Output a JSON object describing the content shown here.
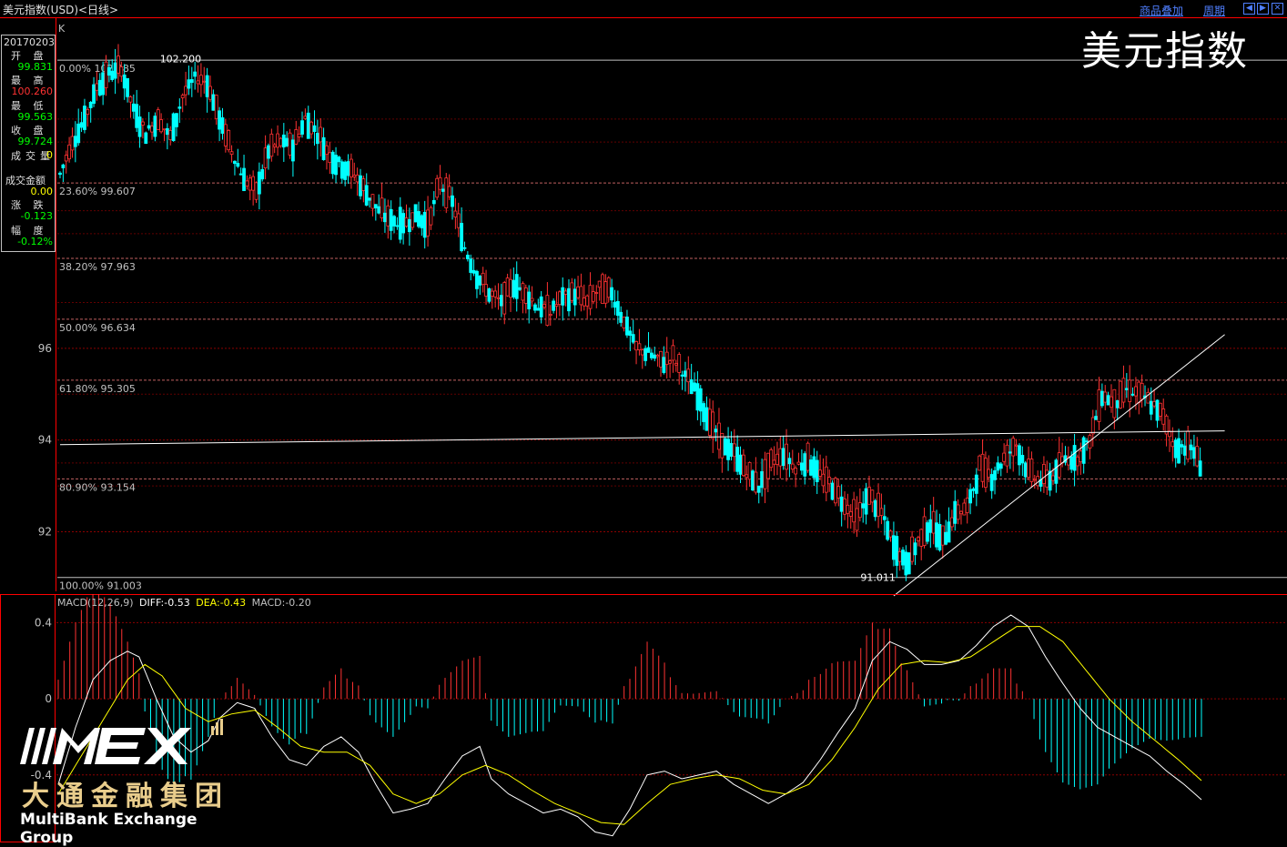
{
  "header": {
    "instrument_title": "美元指数(USD)<日线>",
    "overlay_link": "商品叠加",
    "period_link": "周期"
  },
  "info_panel": {
    "date": "20170203",
    "rows": [
      {
        "label": "开 盘",
        "value": "99.831",
        "color": "#00ff00"
      },
      {
        "label": "最 高",
        "value": "100.260",
        "color": "#ff3232"
      },
      {
        "label": "最 低",
        "value": "99.563",
        "color": "#00ff00"
      },
      {
        "label": "收 盘",
        "value": "99.724",
        "color": "#00ff00"
      },
      {
        "label": "成交量",
        "value": "0",
        "color": "#ffff00"
      },
      {
        "label": "成交金额",
        "value": "0.00",
        "color": "#ffff00"
      },
      {
        "label": "涨 跌",
        "value": "-0.123",
        "color": "#00ff00"
      },
      {
        "label": "幅 度",
        "value": "-0.12%",
        "color": "#00ff00"
      }
    ]
  },
  "chart_label": "K",
  "watermark": "美元指数",
  "macd_header": {
    "name": "MACD(12,26,9)",
    "diff": "DIFF:-0.53",
    "dea": "DEA:-0.43",
    "macd": "MACD:-0.20"
  },
  "logo": {
    "mark": "MEX",
    "name_cn": "大通金融集团",
    "name_en": "MultiBank Exchange Group"
  },
  "colors": {
    "up": "#ff3232",
    "down": "#00ffff",
    "grid": "#8b0000",
    "dif": "#ffffff",
    "dea": "#ffff00"
  },
  "chart_data": [
    {
      "type": "candlestick",
      "ylim": [
        90.7,
        103.2
      ],
      "yticks": [
        92,
        94,
        96
      ],
      "high_annotation": "102.200",
      "low_annotation": "91.011",
      "fib_levels": [
        {
          "label": "0.00% 102.285",
          "value": 102.285
        },
        {
          "label": "23.60% 99.607",
          "value": 99.607
        },
        {
          "label": "38.20% 97.963",
          "value": 97.963
        },
        {
          "label": "50.00% 96.634",
          "value": 96.634
        },
        {
          "label": "61.80% 95.305",
          "value": 95.305
        },
        {
          "label": "80.90% 93.154",
          "value": 93.154
        },
        {
          "label": "100.00% 91.003",
          "value": 91.003
        }
      ],
      "close_path": [
        [
          0,
          99.8
        ],
        [
          4,
          100.5
        ],
        [
          8,
          101.0
        ],
        [
          12,
          101.7
        ],
        [
          16,
          102.0
        ],
        [
          20,
          102.1
        ],
        [
          24,
          101.2
        ],
        [
          28,
          100.7
        ],
        [
          32,
          101.0
        ],
        [
          36,
          100.6
        ],
        [
          40,
          101.5
        ],
        [
          44,
          101.9
        ],
        [
          48,
          101.8
        ],
        [
          52,
          101.0
        ],
        [
          56,
          100.3
        ],
        [
          60,
          99.7
        ],
        [
          64,
          99.4
        ],
        [
          68,
          100.3
        ],
        [
          72,
          100.5
        ],
        [
          76,
          100.4
        ],
        [
          80,
          101.0
        ],
        [
          84,
          100.7
        ],
        [
          88,
          100.2
        ],
        [
          92,
          100.0
        ],
        [
          96,
          99.8
        ],
        [
          100,
          99.4
        ],
        [
          104,
          99.0
        ],
        [
          108,
          98.8
        ],
        [
          112,
          98.7
        ],
        [
          116,
          98.9
        ],
        [
          120,
          98.7
        ],
        [
          124,
          99.6
        ],
        [
          128,
          99.2
        ],
        [
          132,
          98.2
        ],
        [
          136,
          97.6
        ],
        [
          140,
          97.2
        ],
        [
          144,
          97.0
        ],
        [
          148,
          97.4
        ],
        [
          152,
          97.2
        ],
        [
          156,
          96.9
        ],
        [
          160,
          96.8
        ],
        [
          164,
          97.1
        ],
        [
          168,
          97.2
        ],
        [
          172,
          97.0
        ],
        [
          176,
          97.3
        ],
        [
          180,
          97.2
        ],
        [
          184,
          96.6
        ],
        [
          188,
          96.0
        ],
        [
          192,
          95.9
        ],
        [
          196,
          95.7
        ],
        [
          200,
          95.8
        ],
        [
          204,
          95.4
        ],
        [
          208,
          95.0
        ],
        [
          212,
          94.4
        ],
        [
          216,
          93.9
        ],
        [
          220,
          93.7
        ],
        [
          224,
          93.3
        ],
        [
          228,
          93.0
        ],
        [
          232,
          93.5
        ],
        [
          236,
          93.7
        ],
        [
          240,
          93.4
        ],
        [
          244,
          93.6
        ],
        [
          248,
          93.2
        ],
        [
          252,
          93.0
        ],
        [
          256,
          92.6
        ],
        [
          260,
          92.3
        ],
        [
          264,
          92.8
        ],
        [
          268,
          92.4
        ],
        [
          272,
          91.7
        ],
        [
          276,
          91.3
        ],
        [
          280,
          91.8
        ],
        [
          284,
          92.2
        ],
        [
          288,
          91.8
        ],
        [
          292,
          92.4
        ],
        [
          296,
          92.5
        ],
        [
          300,
          93.4
        ],
        [
          304,
          93.2
        ],
        [
          308,
          93.6
        ],
        [
          312,
          93.9
        ],
        [
          316,
          93.3
        ],
        [
          320,
          93.1
        ],
        [
          324,
          93.2
        ],
        [
          328,
          93.6
        ],
        [
          332,
          93.6
        ],
        [
          336,
          94.0
        ],
        [
          340,
          95.0
        ],
        [
          344,
          94.8
        ],
        [
          348,
          95.1
        ],
        [
          352,
          95.0
        ],
        [
          356,
          94.8
        ],
        [
          360,
          94.5
        ],
        [
          364,
          93.8
        ],
        [
          368,
          93.9
        ],
        [
          372,
          93.5
        ]
      ],
      "trendlines": [
        {
          "from": [
            0,
            93.9
          ],
          "to": [
            380,
            94.2
          ]
        },
        {
          "from": [
            272,
            90.6
          ],
          "to": [
            380,
            96.3
          ]
        }
      ]
    },
    {
      "type": "macd",
      "ylim": [
        -0.75,
        0.55
      ],
      "yticks": [
        -0.4,
        0,
        0.4
      ],
      "dif_path": [
        [
          0,
          -0.45
        ],
        [
          6,
          -0.15
        ],
        [
          12,
          0.1
        ],
        [
          18,
          0.2
        ],
        [
          24,
          0.25
        ],
        [
          28,
          0.22
        ],
        [
          34,
          0.0
        ],
        [
          40,
          -0.2
        ],
        [
          46,
          -0.28
        ],
        [
          52,
          -0.22
        ],
        [
          56,
          -0.1
        ],
        [
          62,
          -0.02
        ],
        [
          68,
          -0.05
        ],
        [
          74,
          -0.2
        ],
        [
          80,
          -0.32
        ],
        [
          86,
          -0.35
        ],
        [
          92,
          -0.25
        ],
        [
          98,
          -0.2
        ],
        [
          104,
          -0.28
        ],
        [
          110,
          -0.45
        ],
        [
          116,
          -0.6
        ],
        [
          122,
          -0.58
        ],
        [
          128,
          -0.55
        ],
        [
          134,
          -0.42
        ],
        [
          140,
          -0.3
        ],
        [
          146,
          -0.25
        ],
        [
          150,
          -0.42
        ],
        [
          156,
          -0.5
        ],
        [
          162,
          -0.55
        ],
        [
          168,
          -0.6
        ],
        [
          174,
          -0.58
        ],
        [
          180,
          -0.62
        ],
        [
          186,
          -0.7
        ],
        [
          192,
          -0.72
        ],
        [
          198,
          -0.58
        ],
        [
          204,
          -0.4
        ],
        [
          210,
          -0.38
        ],
        [
          216,
          -0.42
        ],
        [
          222,
          -0.4
        ],
        [
          228,
          -0.38
        ],
        [
          234,
          -0.45
        ],
        [
          240,
          -0.5
        ],
        [
          246,
          -0.55
        ],
        [
          252,
          -0.5
        ],
        [
          258,
          -0.44
        ],
        [
          264,
          -0.32
        ],
        [
          270,
          -0.18
        ],
        [
          276,
          -0.05
        ],
        [
          282,
          0.2
        ],
        [
          288,
          0.3
        ],
        [
          294,
          0.26
        ],
        [
          300,
          0.18
        ],
        [
          306,
          0.18
        ],
        [
          312,
          0.2
        ],
        [
          318,
          0.28
        ],
        [
          324,
          0.38
        ],
        [
          330,
          0.44
        ],
        [
          336,
          0.38
        ],
        [
          342,
          0.22
        ],
        [
          348,
          0.08
        ],
        [
          354,
          -0.05
        ],
        [
          360,
          -0.15
        ],
        [
          366,
          -0.2
        ],
        [
          372,
          -0.25
        ],
        [
          378,
          -0.3
        ],
        [
          384,
          -0.38
        ],
        [
          390,
          -0.45
        ],
        [
          396,
          -0.53
        ]
      ],
      "dea_path": [
        [
          0,
          -0.5
        ],
        [
          8,
          -0.3
        ],
        [
          16,
          -0.1
        ],
        [
          24,
          0.1
        ],
        [
          30,
          0.18
        ],
        [
          36,
          0.12
        ],
        [
          44,
          -0.05
        ],
        [
          52,
          -0.12
        ],
        [
          60,
          -0.08
        ],
        [
          68,
          -0.06
        ],
        [
          76,
          -0.15
        ],
        [
          84,
          -0.25
        ],
        [
          92,
          -0.28
        ],
        [
          100,
          -0.28
        ],
        [
          108,
          -0.35
        ],
        [
          116,
          -0.5
        ],
        [
          124,
          -0.55
        ],
        [
          132,
          -0.5
        ],
        [
          140,
          -0.4
        ],
        [
          148,
          -0.35
        ],
        [
          156,
          -0.4
        ],
        [
          164,
          -0.48
        ],
        [
          172,
          -0.55
        ],
        [
          180,
          -0.6
        ],
        [
          188,
          -0.65
        ],
        [
          196,
          -0.66
        ],
        [
          204,
          -0.55
        ],
        [
          212,
          -0.45
        ],
        [
          220,
          -0.42
        ],
        [
          228,
          -0.4
        ],
        [
          236,
          -0.42
        ],
        [
          244,
          -0.48
        ],
        [
          252,
          -0.5
        ],
        [
          260,
          -0.45
        ],
        [
          268,
          -0.32
        ],
        [
          276,
          -0.15
        ],
        [
          284,
          0.05
        ],
        [
          292,
          0.18
        ],
        [
          300,
          0.2
        ],
        [
          308,
          0.19
        ],
        [
          316,
          0.22
        ],
        [
          324,
          0.3
        ],
        [
          332,
          0.38
        ],
        [
          340,
          0.38
        ],
        [
          348,
          0.3
        ],
        [
          356,
          0.15
        ],
        [
          364,
          0.0
        ],
        [
          372,
          -0.12
        ],
        [
          380,
          -0.22
        ],
        [
          388,
          -0.32
        ],
        [
          396,
          -0.43
        ]
      ]
    }
  ]
}
